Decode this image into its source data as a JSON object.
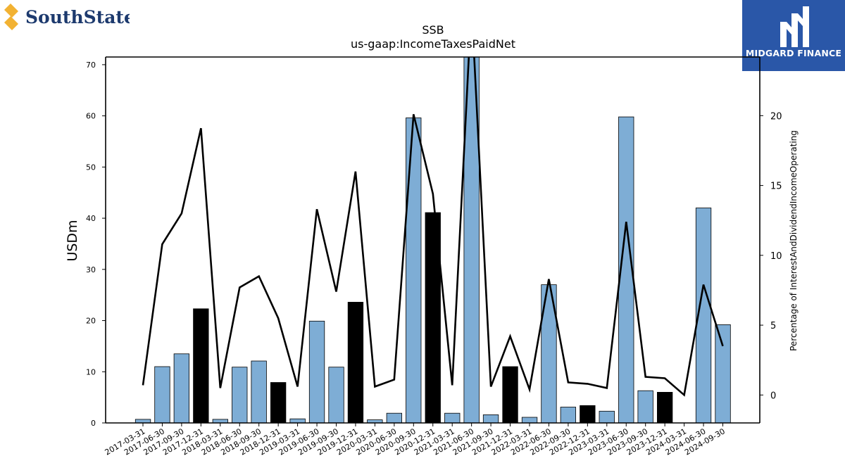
{
  "brand_left": {
    "name": "SouthState",
    "color": "#1d3a6e",
    "accent": "#f2b233"
  },
  "brand_right": {
    "name": "MIDGARD FINANCE",
    "bg": "#2a57a8"
  },
  "chart_data": {
    "type": "bar",
    "title": "SSB",
    "subtitle": "us-gaap:IncomeTaxesPaidNet",
    "ylabel_left": "USDm",
    "ylabel_right": "Percentage of InterestAndDividendIncomeOperating",
    "ylim_left": [
      0,
      71.5
    ],
    "ylim_right": [
      -2,
      24.2
    ],
    "yticks_left": [
      0,
      10,
      20,
      30,
      40,
      50,
      60,
      70
    ],
    "yticks_right": [
      0,
      5,
      10,
      15,
      20
    ],
    "grid": false,
    "categories": [
      "2017-03-31",
      "2017-06-30",
      "2017-09-30",
      "2017-12-31",
      "2018-03-31",
      "2018-06-30",
      "2018-09-30",
      "2018-12-31",
      "2019-03-31",
      "2019-06-30",
      "2019-09-30",
      "2019-12-31",
      "2020-03-31",
      "2020-06-30",
      "2020-09-30",
      "2020-12-31",
      "2021-03-31",
      "2021-06-30",
      "2021-09-30",
      "2021-12-31",
      "2022-03-31",
      "2022-06-30",
      "2022-09-30",
      "2022-12-31",
      "2023-03-31",
      "2023-06-30",
      "2023-09-30",
      "2023-12-31",
      "2024-03-31",
      "2024-06-30",
      "2024-09-30"
    ],
    "series": [
      {
        "type": "bar",
        "axis": "left",
        "values": [
          0.7,
          11.0,
          13.5,
          22.3,
          0.7,
          10.9,
          12.1,
          7.9,
          0.8,
          19.9,
          10.9,
          23.6,
          0.6,
          1.9,
          59.6,
          41.1,
          1.9,
          72.0,
          1.6,
          11.0,
          1.1,
          27.0,
          3.1,
          3.4,
          2.3,
          59.8,
          6.3,
          6.0,
          0.0,
          42.0,
          19.2
        ],
        "colors": [
          "#7eadd5",
          "#7eadd5",
          "#7eadd5",
          "#000000",
          "#7eadd5",
          "#7eadd5",
          "#7eadd5",
          "#000000",
          "#7eadd5",
          "#7eadd5",
          "#7eadd5",
          "#000000",
          "#7eadd5",
          "#7eadd5",
          "#7eadd5",
          "#000000",
          "#7eadd5",
          "#7eadd5",
          "#7eadd5",
          "#000000",
          "#7eadd5",
          "#7eadd5",
          "#7eadd5",
          "#000000",
          "#7eadd5",
          "#7eadd5",
          "#7eadd5",
          "#000000",
          "#7eadd5",
          "#7eadd5",
          "#7eadd5"
        ]
      },
      {
        "type": "line",
        "axis": "right",
        "color": "#000000",
        "values": [
          0.7,
          10.8,
          13.0,
          19.1,
          0.5,
          7.7,
          8.5,
          5.5,
          0.6,
          13.3,
          7.4,
          16.0,
          0.6,
          1.1,
          20.1,
          14.4,
          0.7,
          28.0,
          0.6,
          4.2,
          0.4,
          8.3,
          0.9,
          0.8,
          0.5,
          12.4,
          1.3,
          1.2,
          0.0,
          7.9,
          3.5
        ]
      }
    ]
  }
}
